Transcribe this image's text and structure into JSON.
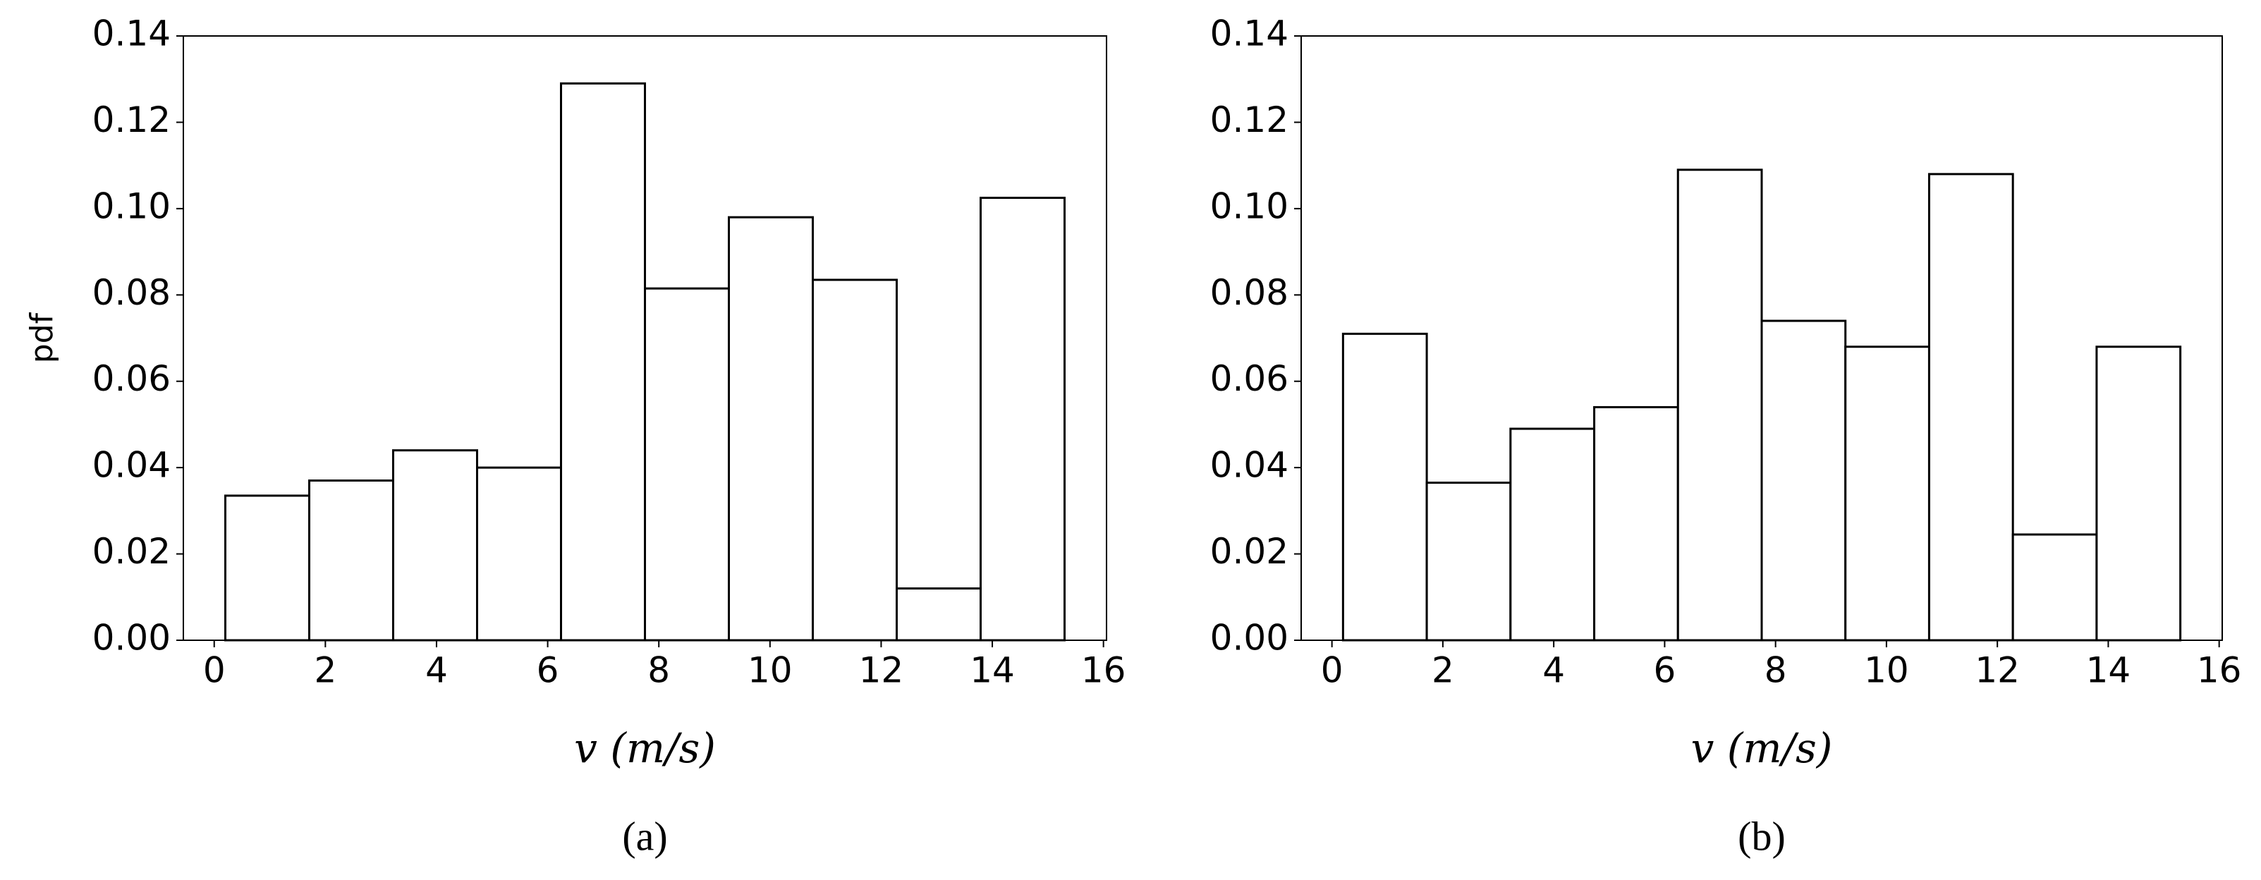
{
  "chart_data": [
    {
      "type": "histogram",
      "caption": "(a)",
      "xlabel": "v (m/s)",
      "ylabel": "pdf",
      "bins": [
        0.2,
        1.71,
        3.22,
        4.73,
        6.24,
        7.75,
        9.26,
        10.77,
        12.28,
        13.79,
        15.3
      ],
      "values": [
        0.0335,
        0.037,
        0.044,
        0.04,
        0.129,
        0.0815,
        0.098,
        0.0835,
        0.012,
        0.1025
      ],
      "color": "#ffffff",
      "edgecolor": "#000000",
      "xlim": [
        -0.555,
        16.055
      ],
      "ylim": [
        0,
        0.14
      ],
      "xticks": [
        0,
        2,
        4,
        6,
        8,
        10,
        12,
        14,
        16
      ],
      "yticks": [
        {
          "value": 0,
          "label": "0.00"
        },
        {
          "value": 0.02,
          "label": "0.02"
        },
        {
          "value": 0.04,
          "label": "0.04"
        },
        {
          "value": 0.06,
          "label": "0.06"
        },
        {
          "value": 0.08,
          "label": "0.08"
        },
        {
          "value": 0.1,
          "label": "0.10"
        },
        {
          "value": 0.12,
          "label": "0.12"
        },
        {
          "value": 0.14,
          "label": "0.14"
        }
      ]
    },
    {
      "type": "histogram",
      "caption": "(b)",
      "xlabel": "v (m/s)",
      "bins": [
        0.2,
        1.71,
        3.22,
        4.73,
        6.24,
        7.75,
        9.26,
        10.77,
        12.28,
        13.79,
        15.3
      ],
      "values": [
        0.071,
        0.0365,
        0.049,
        0.054,
        0.109,
        0.074,
        0.068,
        0.108,
        0.0245,
        0.068
      ],
      "color": "#ffffff",
      "edgecolor": "#000000",
      "xlim": [
        -0.555,
        16.055
      ],
      "ylim": [
        0,
        0.14
      ],
      "xticks": [
        0,
        2,
        4,
        6,
        8,
        10,
        12,
        14,
        16
      ],
      "yticks": [
        {
          "value": 0,
          "label": "0.00"
        },
        {
          "value": 0.02,
          "label": "0.02"
        },
        {
          "value": 0.04,
          "label": "0.04"
        },
        {
          "value": 0.06,
          "label": "0.06"
        },
        {
          "value": 0.08,
          "label": "0.08"
        },
        {
          "value": 0.1,
          "label": "0.10"
        },
        {
          "value": 0.12,
          "label": "0.12"
        },
        {
          "value": 0.14,
          "label": "0.14"
        }
      ]
    }
  ]
}
